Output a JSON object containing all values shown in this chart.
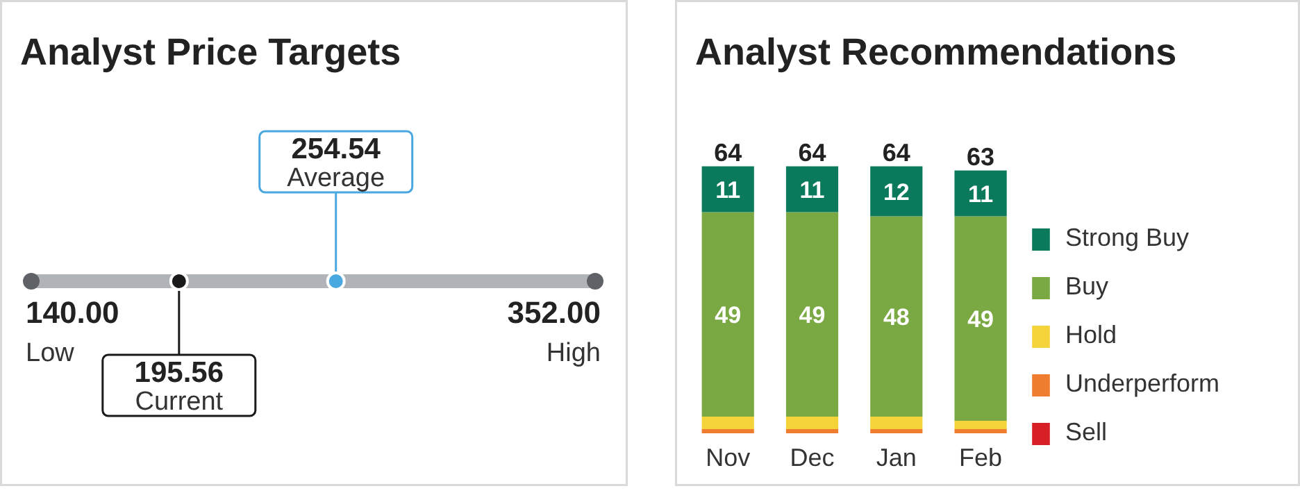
{
  "chart_data": [
    {
      "type": "other",
      "title": "Analyst Price Targets",
      "categories": [
        "Low",
        "Current",
        "Average",
        "High"
      ],
      "values": [
        140.0,
        195.56,
        254.54,
        352.0
      ],
      "value_labels": [
        "140.00",
        "195.56",
        "254.54",
        "352.00"
      ]
    },
    {
      "type": "bar",
      "title": "Analyst Recommendations",
      "stacked": true,
      "categories": [
        "Nov",
        "Dec",
        "Jan",
        "Feb"
      ],
      "legend": "right",
      "totals": [
        "64",
        "64",
        "64",
        "63"
      ],
      "series": [
        {
          "name": "Sell",
          "color": "#d81f26",
          "values": [
            0,
            0,
            0,
            0
          ],
          "value_labels": [
            null,
            null,
            null,
            null
          ]
        },
        {
          "name": "Underperform",
          "color": "#ef7d2f",
          "values": [
            1,
            1,
            1,
            1
          ],
          "value_labels": [
            null,
            null,
            null,
            null
          ]
        },
        {
          "name": "Hold",
          "color": "#f5d33b",
          "values": [
            3,
            3,
            3,
            2
          ],
          "value_labels": [
            null,
            null,
            null,
            null
          ]
        },
        {
          "name": "Buy",
          "color": "#7aa843",
          "values": [
            49,
            49,
            48,
            49
          ],
          "value_labels": [
            "49",
            "49",
            "48",
            "49"
          ]
        },
        {
          "name": "Strong Buy",
          "color": "#0b7a5c",
          "values": [
            11,
            11,
            12,
            11
          ],
          "value_labels": [
            "11",
            "11",
            "12",
            "11"
          ]
        }
      ]
    }
  ]
}
